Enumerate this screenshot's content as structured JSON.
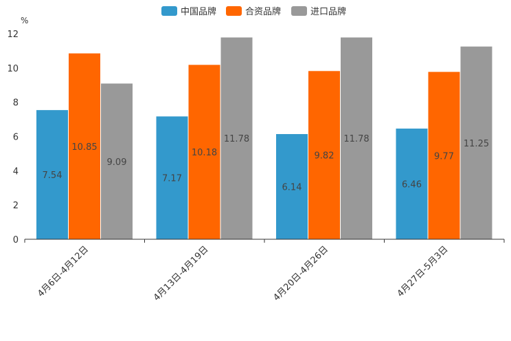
{
  "chart_data": {
    "type": "bar",
    "title": "",
    "xlabel": "",
    "ylabel": "%",
    "ylim": [
      0,
      12
    ],
    "yticks": [
      0,
      2,
      4,
      6,
      8,
      10,
      12
    ],
    "grid": false,
    "legend_position": "top-center",
    "categories": [
      "4月6日-4月12日",
      "4月13日-4月19日",
      "4月20日-4月26日",
      "4月27日-5月3日"
    ],
    "series": [
      {
        "name": "中国品牌",
        "color": "#3399cc",
        "values": [
          7.54,
          7.17,
          6.14,
          6.46
        ]
      },
      {
        "name": "合资品牌",
        "color": "#ff6600",
        "values": [
          10.85,
          10.18,
          9.82,
          9.77
        ]
      },
      {
        "name": "进口品牌",
        "color": "#999999",
        "values": [
          9.09,
          11.78,
          11.78,
          11.25
        ]
      }
    ],
    "data_labels": [
      [
        "7.54",
        "7.17",
        "6.14",
        "6.46"
      ],
      [
        "10.85",
        "10.18",
        "9.82",
        "9.77"
      ],
      [
        "9.09",
        "11.78",
        "11.78",
        "11.25"
      ]
    ]
  }
}
